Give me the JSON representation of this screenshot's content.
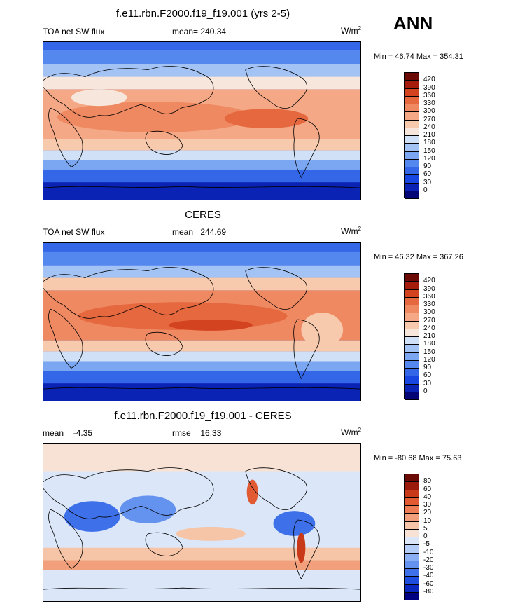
{
  "season": "ANN",
  "panels": [
    {
      "title": "f.e11.rbn.F2000.f19_f19.001 (yrs 2-5)",
      "left_label": "TOA net SW flux",
      "center_label": "mean= 240.34",
      "units_base": "W/m",
      "units_exp": "2",
      "minmax": "Min =  46.74 Max = 354.31",
      "colorbar_levels": [
        "420",
        "390",
        "360",
        "330",
        "300",
        "270",
        "240",
        "210",
        "180",
        "150",
        "120",
        "90",
        "60",
        "30",
        "0"
      ]
    },
    {
      "title": "CERES",
      "left_label": "TOA net SW flux",
      "center_label": "mean= 244.69",
      "units_base": "W/m",
      "units_exp": "2",
      "minmax": "Min =  46.32 Max = 367.26",
      "colorbar_levels": [
        "420",
        "390",
        "360",
        "330",
        "300",
        "270",
        "240",
        "210",
        "180",
        "150",
        "120",
        "90",
        "60",
        "30",
        "0"
      ]
    },
    {
      "title": "f.e11.rbn.F2000.f19_f19.001 - CERES",
      "left_label": "mean =  -4.35",
      "center_label": "rmse =  16.33",
      "units_base": "W/m",
      "units_exp": "2",
      "minmax": "Min = -80.68 Max =  75.63",
      "colorbar_levels": [
        "80",
        "60",
        "40",
        "30",
        "20",
        "10",
        "5",
        "0",
        "-5",
        "-10",
        "-20",
        "-30",
        "-40",
        "-60",
        "-80"
      ]
    }
  ],
  "colors": {
    "abs_palette": [
      "#050575",
      "#0a23b4",
      "#1846e0",
      "#3466e8",
      "#5588ef",
      "#7aa6f2",
      "#a3c3f5",
      "#cfe0f7",
      "#f7e6dc",
      "#f7c9ad",
      "#f4a886",
      "#ee8962",
      "#e5683f",
      "#d4431f",
      "#a51c0c",
      "#6b0a04"
    ],
    "diff_palette": [
      "#000080",
      "#0a28c0",
      "#1e4ee0",
      "#3e70ea",
      "#6492ef",
      "#8ab0f3",
      "#b3cdf6",
      "#dbe7f8",
      "#f8e2d5",
      "#f6c4a6",
      "#f2a07c",
      "#ec7d55",
      "#e15a32",
      "#c8391a",
      "#9a1a0c",
      "#6a0a05"
    ]
  },
  "chart_data": [
    {
      "type": "heatmap",
      "title": "f.e11.rbn.F2000.f19_f19.001 (yrs 2-5)",
      "variable": "TOA net SW flux",
      "units": "W/m2",
      "mean": 240.34,
      "min": 46.74,
      "max": 354.31,
      "levels": [
        0,
        30,
        60,
        90,
        120,
        150,
        180,
        210,
        240,
        270,
        300,
        330,
        360,
        390,
        420
      ]
    },
    {
      "type": "heatmap",
      "title": "CERES",
      "variable": "TOA net SW flux",
      "units": "W/m2",
      "mean": 244.69,
      "min": 46.32,
      "max": 367.26,
      "levels": [
        0,
        30,
        60,
        90,
        120,
        150,
        180,
        210,
        240,
        270,
        300,
        330,
        360,
        390,
        420
      ]
    },
    {
      "type": "heatmap",
      "title": "f.e11.rbn.F2000.f19_f19.001 - CERES",
      "mean": -4.35,
      "rmse": 16.33,
      "units": "W/m2",
      "min": -80.68,
      "max": 75.63,
      "levels": [
        -80,
        -60,
        -40,
        -30,
        -20,
        -10,
        -5,
        0,
        5,
        10,
        20,
        30,
        40,
        60,
        80
      ]
    }
  ]
}
